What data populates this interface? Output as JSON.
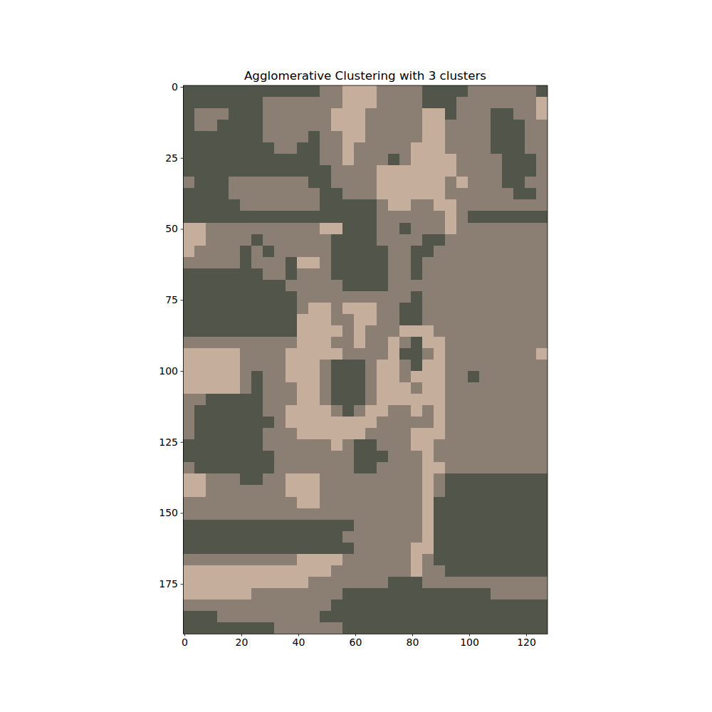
{
  "chart_data": {
    "type": "image",
    "title": "Agglomerative Clustering with 3 clusters",
    "xlim": [
      -0.5,
      127.5
    ],
    "ylim": [
      192.5,
      -0.5
    ],
    "xticks": [
      0,
      20,
      40,
      60,
      80,
      100,
      120
    ],
    "yticks": [
      0,
      25,
      50,
      75,
      100,
      125,
      150,
      175
    ],
    "colors": [
      "#52554a",
      "#8a7f72",
      "#c6ae9c"
    ],
    "cells": [
      [
        0,
        0,
        0,
        0,
        0,
        0,
        0,
        0,
        0,
        0,
        0,
        0,
        1,
        1,
        2,
        2,
        2,
        1,
        1,
        1,
        1,
        0,
        0,
        0,
        0,
        1,
        1,
        1,
        1,
        1,
        1,
        0
      ],
      [
        0,
        0,
        0,
        0,
        0,
        0,
        0,
        1,
        1,
        1,
        1,
        1,
        1,
        1,
        2,
        2,
        2,
        1,
        1,
        1,
        1,
        0,
        0,
        0,
        1,
        1,
        1,
        1,
        1,
        1,
        1,
        2
      ],
      [
        0,
        1,
        1,
        1,
        0,
        0,
        0,
        1,
        1,
        1,
        1,
        1,
        1,
        2,
        2,
        2,
        1,
        1,
        1,
        1,
        1,
        2,
        2,
        0,
        1,
        1,
        1,
        0,
        0,
        1,
        1,
        2
      ],
      [
        0,
        1,
        1,
        0,
        0,
        0,
        0,
        1,
        1,
        1,
        1,
        1,
        1,
        2,
        2,
        2,
        1,
        1,
        1,
        1,
        1,
        2,
        2,
        1,
        1,
        1,
        1,
        0,
        0,
        0,
        1,
        1
      ],
      [
        0,
        0,
        0,
        0,
        0,
        0,
        0,
        1,
        1,
        1,
        1,
        0,
        1,
        1,
        2,
        2,
        1,
        1,
        1,
        1,
        1,
        2,
        2,
        1,
        1,
        1,
        1,
        0,
        0,
        0,
        1,
        1
      ],
      [
        0,
        0,
        0,
        0,
        0,
        0,
        0,
        0,
        1,
        1,
        0,
        0,
        1,
        1,
        2,
        1,
        1,
        1,
        1,
        1,
        2,
        2,
        2,
        1,
        1,
        1,
        1,
        0,
        0,
        0,
        1,
        1
      ],
      [
        0,
        0,
        0,
        0,
        0,
        0,
        0,
        0,
        0,
        0,
        0,
        0,
        1,
        1,
        2,
        1,
        1,
        1,
        0,
        1,
        2,
        2,
        2,
        2,
        1,
        1,
        1,
        1,
        0,
        0,
        0,
        1
      ],
      [
        0,
        0,
        0,
        0,
        0,
        0,
        0,
        0,
        0,
        0,
        0,
        0,
        0,
        1,
        1,
        1,
        1,
        2,
        2,
        2,
        2,
        2,
        2,
        2,
        1,
        1,
        1,
        1,
        0,
        0,
        0,
        1
      ],
      [
        1,
        0,
        0,
        0,
        1,
        1,
        1,
        1,
        1,
        1,
        1,
        0,
        0,
        1,
        1,
        1,
        1,
        2,
        2,
        2,
        2,
        2,
        2,
        1,
        2,
        1,
        1,
        1,
        0,
        0,
        1,
        1
      ],
      [
        0,
        0,
        0,
        0,
        1,
        1,
        1,
        1,
        1,
        1,
        1,
        1,
        0,
        0,
        1,
        1,
        1,
        2,
        2,
        2,
        2,
        2,
        2,
        1,
        1,
        1,
        1,
        1,
        1,
        0,
        0,
        1
      ],
      [
        0,
        0,
        0,
        0,
        0,
        1,
        1,
        1,
        1,
        1,
        1,
        1,
        0,
        0,
        0,
        0,
        0,
        1,
        2,
        2,
        1,
        1,
        2,
        2,
        1,
        1,
        1,
        1,
        1,
        1,
        1,
        1
      ],
      [
        0,
        0,
        0,
        0,
        0,
        0,
        0,
        0,
        0,
        0,
        0,
        0,
        0,
        0,
        0,
        0,
        0,
        1,
        1,
        1,
        1,
        1,
        1,
        2,
        1,
        0,
        0,
        0,
        0,
        0,
        0,
        0
      ],
      [
        2,
        2,
        1,
        1,
        1,
        1,
        1,
        1,
        1,
        1,
        1,
        1,
        2,
        2,
        0,
        0,
        0,
        1,
        1,
        0,
        1,
        1,
        1,
        2,
        1,
        1,
        1,
        1,
        1,
        1,
        1,
        1
      ],
      [
        2,
        2,
        1,
        1,
        1,
        1,
        0,
        1,
        1,
        1,
        1,
        1,
        1,
        0,
        0,
        0,
        0,
        1,
        1,
        1,
        1,
        0,
        0,
        1,
        1,
        1,
        1,
        1,
        1,
        1,
        1,
        1
      ],
      [
        2,
        1,
        1,
        1,
        1,
        0,
        1,
        0,
        1,
        1,
        1,
        1,
        1,
        0,
        0,
        0,
        0,
        0,
        1,
        1,
        0,
        0,
        1,
        1,
        1,
        1,
        1,
        1,
        1,
        1,
        1,
        1
      ],
      [
        1,
        1,
        1,
        1,
        1,
        0,
        1,
        1,
        1,
        0,
        2,
        2,
        1,
        0,
        0,
        0,
        0,
        0,
        1,
        1,
        0,
        1,
        1,
        1,
        1,
        1,
        1,
        1,
        1,
        1,
        1,
        1
      ],
      [
        0,
        0,
        0,
        0,
        0,
        0,
        0,
        1,
        1,
        0,
        1,
        1,
        1,
        0,
        0,
        0,
        0,
        0,
        1,
        1,
        0,
        1,
        1,
        1,
        1,
        1,
        1,
        1,
        1,
        1,
        1,
        1
      ],
      [
        0,
        0,
        0,
        0,
        0,
        0,
        0,
        0,
        0,
        1,
        1,
        1,
        1,
        1,
        0,
        0,
        0,
        0,
        1,
        1,
        1,
        1,
        1,
        1,
        1,
        1,
        1,
        1,
        1,
        1,
        1,
        1
      ],
      [
        0,
        0,
        0,
        0,
        0,
        0,
        0,
        0,
        0,
        0,
        1,
        1,
        1,
        1,
        1,
        1,
        1,
        1,
        1,
        1,
        0,
        1,
        1,
        1,
        1,
        1,
        1,
        1,
        1,
        1,
        1,
        1
      ],
      [
        0,
        0,
        0,
        0,
        0,
        0,
        0,
        0,
        0,
        0,
        1,
        2,
        2,
        1,
        2,
        2,
        2,
        1,
        1,
        0,
        0,
        1,
        1,
        1,
        1,
        1,
        1,
        1,
        1,
        1,
        1,
        1
      ],
      [
        0,
        0,
        0,
        0,
        0,
        0,
        0,
        0,
        0,
        0,
        2,
        2,
        2,
        1,
        1,
        2,
        2,
        1,
        1,
        0,
        0,
        1,
        1,
        1,
        1,
        1,
        1,
        1,
        1,
        1,
        1,
        1
      ],
      [
        0,
        0,
        0,
        0,
        0,
        0,
        0,
        0,
        0,
        0,
        2,
        2,
        2,
        2,
        1,
        2,
        1,
        1,
        1,
        2,
        2,
        2,
        1,
        1,
        1,
        1,
        1,
        1,
        1,
        1,
        1,
        1
      ],
      [
        1,
        1,
        1,
        1,
        1,
        1,
        1,
        1,
        1,
        1,
        2,
        2,
        2,
        1,
        1,
        2,
        1,
        1,
        2,
        1,
        0,
        2,
        2,
        1,
        1,
        1,
        1,
        1,
        1,
        1,
        1,
        1
      ],
      [
        2,
        2,
        2,
        2,
        2,
        1,
        1,
        1,
        1,
        2,
        2,
        2,
        2,
        2,
        1,
        1,
        1,
        1,
        2,
        0,
        0,
        1,
        2,
        1,
        1,
        1,
        1,
        1,
        1,
        1,
        1,
        2
      ],
      [
        2,
        2,
        2,
        2,
        2,
        1,
        1,
        1,
        1,
        2,
        2,
        2,
        1,
        0,
        0,
        0,
        1,
        2,
        2,
        1,
        0,
        2,
        2,
        1,
        1,
        1,
        1,
        1,
        1,
        1,
        1,
        1
      ],
      [
        2,
        2,
        2,
        2,
        2,
        1,
        0,
        1,
        1,
        2,
        2,
        2,
        1,
        0,
        0,
        0,
        1,
        2,
        2,
        1,
        2,
        2,
        2,
        1,
        1,
        0,
        1,
        1,
        1,
        1,
        1,
        1
      ],
      [
        2,
        2,
        2,
        2,
        2,
        1,
        0,
        1,
        1,
        1,
        2,
        2,
        1,
        0,
        0,
        0,
        1,
        2,
        2,
        2,
        1,
        2,
        2,
        1,
        1,
        1,
        1,
        1,
        1,
        1,
        1,
        1
      ],
      [
        1,
        1,
        0,
        0,
        0,
        0,
        0,
        1,
        1,
        1,
        2,
        2,
        1,
        0,
        0,
        0,
        1,
        2,
        2,
        2,
        2,
        2,
        2,
        1,
        1,
        1,
        1,
        1,
        1,
        1,
        1,
        1
      ],
      [
        1,
        0,
        0,
        0,
        0,
        0,
        0,
        1,
        1,
        2,
        2,
        2,
        2,
        1,
        0,
        1,
        2,
        2,
        1,
        1,
        2,
        1,
        2,
        1,
        1,
        1,
        1,
        1,
        1,
        1,
        1,
        1
      ],
      [
        1,
        0,
        0,
        0,
        0,
        0,
        0,
        0,
        1,
        2,
        2,
        2,
        2,
        2,
        2,
        2,
        2,
        1,
        1,
        1,
        1,
        1,
        2,
        1,
        1,
        1,
        1,
        1,
        1,
        1,
        1,
        1
      ],
      [
        1,
        0,
        0,
        0,
        0,
        0,
        0,
        1,
        1,
        1,
        2,
        2,
        2,
        2,
        2,
        2,
        1,
        1,
        1,
        1,
        2,
        2,
        2,
        1,
        1,
        1,
        1,
        1,
        1,
        1,
        1,
        1
      ],
      [
        0,
        0,
        0,
        0,
        0,
        0,
        0,
        1,
        1,
        1,
        1,
        1,
        1,
        2,
        1,
        0,
        0,
        1,
        1,
        1,
        2,
        2,
        1,
        1,
        1,
        1,
        1,
        1,
        1,
        1,
        1,
        1
      ],
      [
        0,
        0,
        0,
        0,
        0,
        0,
        0,
        0,
        1,
        1,
        1,
        1,
        1,
        1,
        1,
        0,
        0,
        0,
        1,
        1,
        1,
        2,
        1,
        1,
        1,
        1,
        1,
        1,
        1,
        1,
        1,
        1
      ],
      [
        1,
        0,
        0,
        0,
        0,
        0,
        0,
        0,
        1,
        1,
        1,
        1,
        1,
        1,
        1,
        0,
        0,
        1,
        1,
        1,
        1,
        2,
        2,
        1,
        1,
        1,
        1,
        1,
        1,
        1,
        1,
        1
      ],
      [
        2,
        2,
        1,
        1,
        1,
        0,
        0,
        1,
        1,
        2,
        2,
        2,
        1,
        1,
        1,
        1,
        1,
        1,
        1,
        1,
        1,
        2,
        1,
        0,
        0,
        0,
        0,
        0,
        0,
        0,
        0,
        0
      ],
      [
        2,
        2,
        1,
        1,
        1,
        1,
        1,
        1,
        1,
        2,
        2,
        2,
        1,
        1,
        1,
        1,
        1,
        1,
        1,
        1,
        1,
        2,
        1,
        0,
        0,
        0,
        0,
        0,
        0,
        0,
        0,
        0
      ],
      [
        1,
        1,
        1,
        1,
        1,
        1,
        1,
        1,
        1,
        1,
        2,
        2,
        1,
        1,
        1,
        1,
        1,
        1,
        1,
        1,
        1,
        2,
        0,
        0,
        0,
        0,
        0,
        0,
        0,
        0,
        0,
        0
      ],
      [
        1,
        1,
        1,
        1,
        1,
        1,
        1,
        1,
        1,
        1,
        1,
        1,
        1,
        1,
        1,
        1,
        1,
        1,
        1,
        1,
        1,
        2,
        0,
        0,
        0,
        0,
        0,
        0,
        0,
        0,
        0,
        0
      ],
      [
        0,
        0,
        0,
        0,
        0,
        0,
        0,
        0,
        0,
        0,
        0,
        0,
        0,
        0,
        0,
        1,
        1,
        1,
        1,
        1,
        1,
        2,
        0,
        0,
        0,
        0,
        0,
        0,
        0,
        0,
        0,
        0
      ],
      [
        0,
        0,
        0,
        0,
        0,
        0,
        0,
        0,
        0,
        0,
        0,
        0,
        0,
        0,
        1,
        1,
        1,
        1,
        1,
        1,
        1,
        2,
        0,
        0,
        0,
        0,
        0,
        0,
        0,
        0,
        0,
        0
      ],
      [
        0,
        0,
        0,
        0,
        0,
        0,
        0,
        0,
        0,
        0,
        0,
        0,
        0,
        0,
        0,
        1,
        1,
        1,
        1,
        1,
        2,
        2,
        0,
        0,
        0,
        0,
        0,
        0,
        0,
        0,
        0,
        0
      ],
      [
        1,
        1,
        1,
        1,
        1,
        1,
        1,
        1,
        1,
        1,
        2,
        2,
        2,
        2,
        1,
        1,
        1,
        1,
        1,
        1,
        2,
        1,
        0,
        0,
        0,
        0,
        0,
        0,
        0,
        0,
        0,
        0
      ],
      [
        2,
        2,
        2,
        2,
        2,
        2,
        2,
        2,
        2,
        2,
        2,
        2,
        2,
        1,
        1,
        1,
        1,
        1,
        1,
        1,
        2,
        1,
        1,
        0,
        0,
        0,
        0,
        0,
        0,
        0,
        0,
        0
      ],
      [
        2,
        2,
        2,
        2,
        2,
        2,
        2,
        2,
        2,
        2,
        2,
        1,
        1,
        1,
        1,
        1,
        1,
        1,
        0,
        0,
        0,
        1,
        1,
        1,
        1,
        1,
        1,
        1,
        1,
        1,
        1,
        1
      ],
      [
        2,
        2,
        2,
        2,
        2,
        2,
        1,
        1,
        1,
        1,
        1,
        1,
        1,
        1,
        0,
        0,
        0,
        0,
        0,
        0,
        0,
        0,
        0,
        0,
        0,
        0,
        0,
        1,
        1,
        1,
        1,
        1
      ],
      [
        1,
        1,
        1,
        1,
        1,
        1,
        1,
        1,
        1,
        1,
        1,
        1,
        1,
        0,
        0,
        0,
        0,
        0,
        0,
        0,
        0,
        0,
        0,
        0,
        0,
        0,
        0,
        0,
        0,
        0,
        0,
        0
      ],
      [
        0,
        0,
        0,
        1,
        1,
        1,
        1,
        1,
        1,
        1,
        1,
        1,
        0,
        0,
        0,
        0,
        0,
        0,
        0,
        0,
        0,
        0,
        0,
        0,
        0,
        0,
        0,
        0,
        0,
        0,
        0,
        0
      ],
      [
        0,
        0,
        0,
        0,
        0,
        0,
        0,
        0,
        1,
        1,
        1,
        1,
        1,
        1,
        0,
        0,
        0,
        0,
        0,
        0,
        0,
        0,
        0,
        0,
        0,
        0,
        0,
        0,
        0,
        0,
        0,
        0
      ]
    ]
  }
}
